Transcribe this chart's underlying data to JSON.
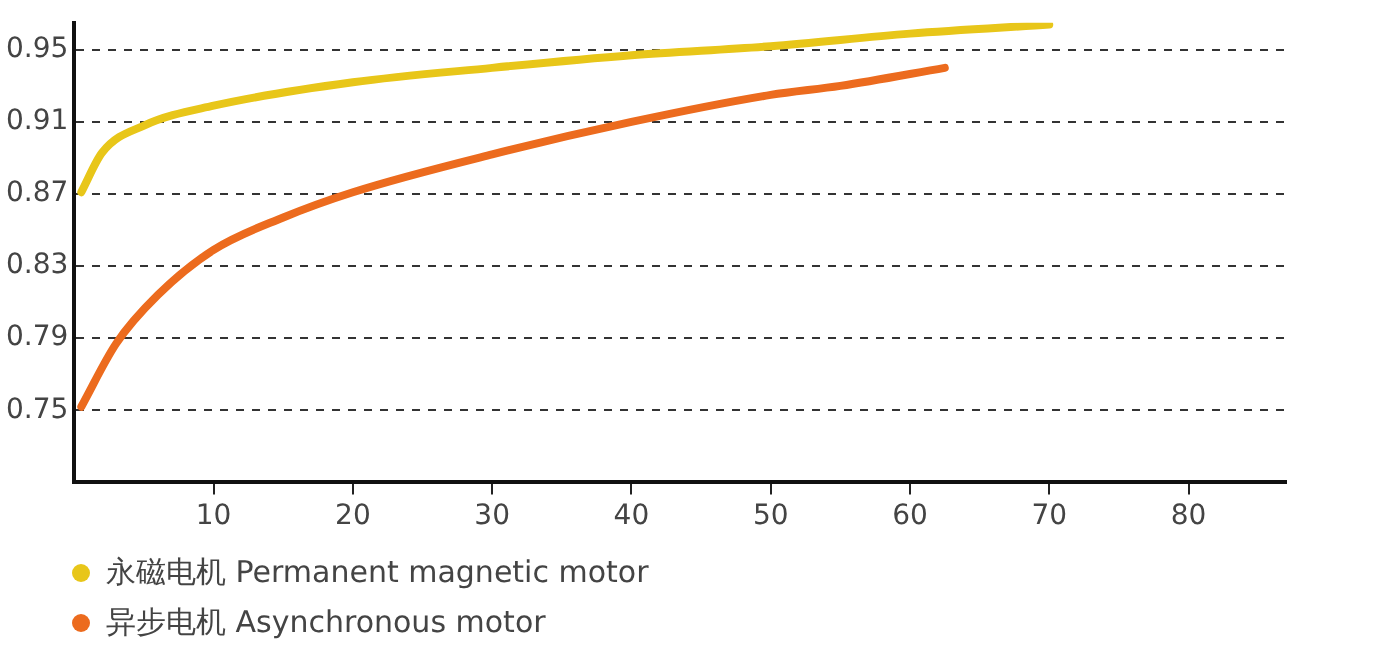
{
  "chart_data": {
    "type": "line",
    "xlim": [
      0,
      87
    ],
    "xticks": [
      10,
      20,
      30,
      40,
      50,
      60,
      70,
      80
    ],
    "ylim": [
      0.71,
      0.965
    ],
    "yticks": [
      0.75,
      0.79,
      0.83,
      0.87,
      0.91,
      0.95
    ],
    "grid": "y",
    "legend": "bottom left",
    "marker": "none",
    "line_style": "solid",
    "series": [
      {
        "name": "永磁电机 Permanent magnetic motor",
        "color": "#e8c619",
        "x": [
          0.5,
          2,
          5,
          10,
          20,
          30,
          40,
          50,
          60,
          70
        ],
        "values": [
          0.871,
          0.893,
          0.908,
          0.919,
          0.932,
          0.94,
          0.947,
          0.952,
          0.959,
          0.964
        ]
      },
      {
        "name": "异步电机 Asynchronous motor",
        "color": "#ec6b1e",
        "x": [
          0.5,
          3,
          6,
          10,
          15,
          20,
          30,
          40,
          50,
          55,
          62.5
        ],
        "values": [
          0.752,
          0.787,
          0.814,
          0.839,
          0.857,
          0.871,
          0.892,
          0.91,
          0.925,
          0.93,
          0.94
        ]
      }
    ]
  }
}
